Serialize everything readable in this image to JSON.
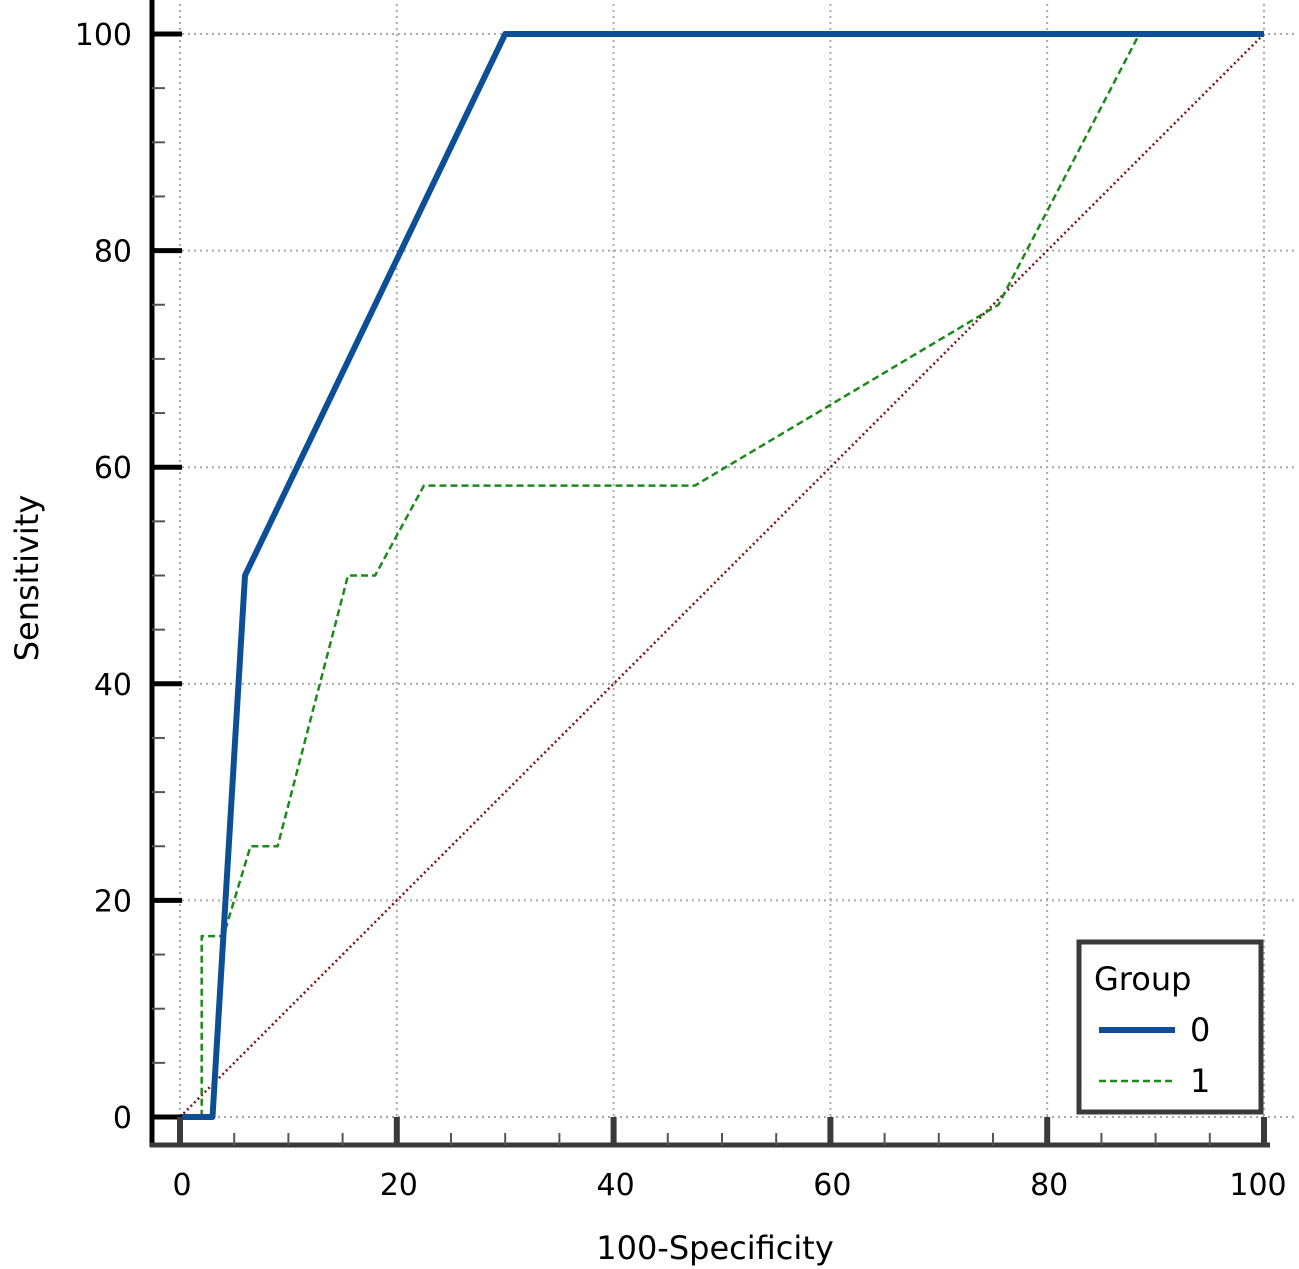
{
  "chart_data": {
    "type": "line",
    "title": "",
    "xlabel": "100-Specificity",
    "ylabel": "Sensitivity",
    "xlim": [
      0,
      100
    ],
    "ylim": [
      0,
      100
    ],
    "xticks": [
      0,
      20,
      40,
      60,
      80,
      100
    ],
    "yticks": [
      0,
      20,
      40,
      60,
      80,
      100
    ],
    "x_tick_labels": [
      "0",
      "20",
      "40",
      "60",
      "80",
      "100"
    ],
    "y_tick_labels": [
      "0",
      "20",
      "40",
      "60",
      "80",
      "100"
    ],
    "grid": true,
    "legend": {
      "title": "Group",
      "position": "bottom-right"
    },
    "series": [
      {
        "name": "0",
        "color": "#0d4f96",
        "style": "solid",
        "points": [
          [
            0,
            0
          ],
          [
            3,
            0
          ],
          [
            6,
            50
          ],
          [
            30,
            100
          ],
          [
            100,
            100
          ]
        ]
      },
      {
        "name": "1",
        "color": "#1a8a1a",
        "style": "dashed",
        "points": [
          [
            0,
            0
          ],
          [
            2,
            0
          ],
          [
            2,
            16.7
          ],
          [
            4,
            16.7
          ],
          [
            6.5,
            25
          ],
          [
            9,
            25
          ],
          [
            15.5,
            50
          ],
          [
            18,
            50
          ],
          [
            22.5,
            58.3
          ],
          [
            47.5,
            58.3
          ],
          [
            75.5,
            75
          ],
          [
            88.5,
            100
          ],
          [
            100,
            100
          ]
        ]
      },
      {
        "name": "",
        "color": "#7a1515",
        "style": "dotted",
        "points": [
          [
            0,
            0
          ],
          [
            100,
            100
          ]
        ]
      }
    ]
  }
}
